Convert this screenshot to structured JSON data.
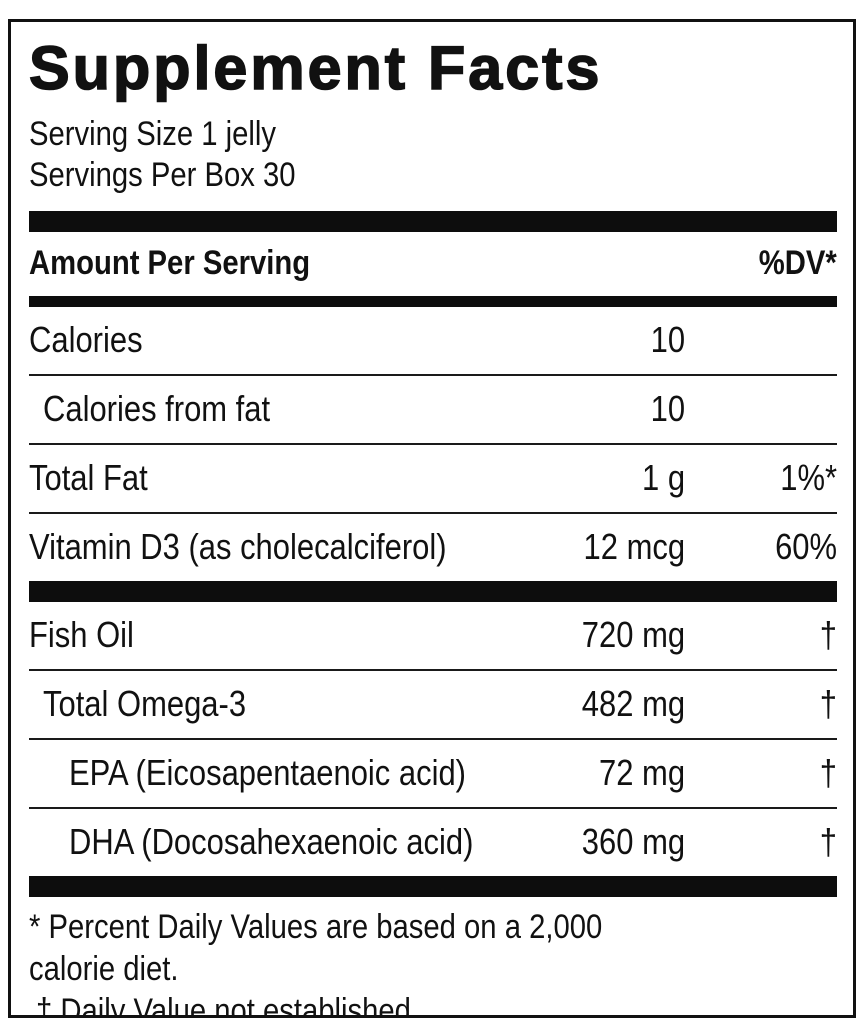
{
  "label": {
    "title": "Supplement Facts",
    "serving_size": "Serving Size 1 jelly",
    "servings_per_box": "Servings Per Box 30",
    "header": {
      "amount_per_serving": "Amount Per Serving",
      "dv": "%DV*"
    },
    "rows": [
      {
        "name": "Calories",
        "amount": "10",
        "dv": "",
        "indent": 0
      },
      {
        "name": "Calories from fat",
        "amount": "10",
        "dv": "",
        "indent": 1
      },
      {
        "name": "Total Fat",
        "amount": "1 g",
        "dv": "1%*",
        "indent": 0
      },
      {
        "name": "Vitamin D3 (as cholecalciferol)",
        "amount": "12 mcg",
        "dv": "60%",
        "indent": 0
      },
      {
        "name": "Fish Oil",
        "amount": "720 mg",
        "dv": "†",
        "indent": 0
      },
      {
        "name": "Total Omega-3",
        "amount": "482 mg",
        "dv": "†",
        "indent": 1
      },
      {
        "name": "EPA (Eicosapentaenoic acid)",
        "amount": "72 mg",
        "dv": "†",
        "indent": 2
      },
      {
        "name": "DHA (Docosahexaenoic acid)",
        "amount": "360 mg",
        "dv": "†",
        "indent": 2
      }
    ],
    "footnotes": {
      "dv_basis": "* Percent Daily Values are based on a 2,000 calorie diet.",
      "dv_not_established": "† Daily Value not established."
    },
    "colors": {
      "text": "#111111",
      "background": "#ffffff",
      "bar": "#0d0d0d"
    }
  }
}
